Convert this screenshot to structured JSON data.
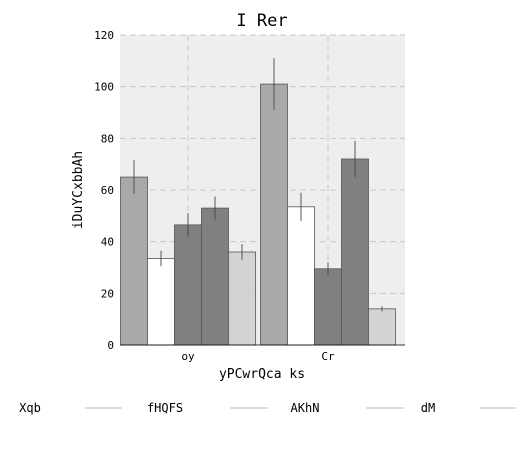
{
  "chart_data": {
    "type": "bar",
    "title": "I Rer",
    "xlabel": "yPCwrQca ks",
    "ylabel": "iDuYCxbbAh",
    "ylim": [
      0,
      120
    ],
    "yticks": [
      0,
      20,
      40,
      60,
      80,
      100,
      120
    ],
    "grid": true,
    "legend_position": "bottom",
    "categories": [
      "oy",
      "Cr"
    ],
    "series": [
      {
        "name": "",
        "values": [
          65,
          101
        ],
        "errors": [
          6.5,
          10
        ],
        "color": "#a9a9a9"
      },
      {
        "name": "",
        "values": [
          33.5,
          53.5
        ],
        "errors": [
          3,
          5.5
        ],
        "color": "#ffffff"
      },
      {
        "name": "",
        "values": [
          46.5,
          29.5
        ],
        "errors": [
          4.5,
          2.5
        ],
        "color": "#808080"
      },
      {
        "name": "",
        "values": [
          53,
          72
        ],
        "errors": [
          4.5,
          7
        ],
        "color": "#808080"
      },
      {
        "name": "",
        "values": [
          36,
          14
        ],
        "errors": [
          3,
          1
        ],
        "color": "#d3d3d3"
      }
    ],
    "legend_entries": [
      "Xqb",
      "fHQFS",
      "AKhN",
      "dM",
      ""
    ]
  }
}
